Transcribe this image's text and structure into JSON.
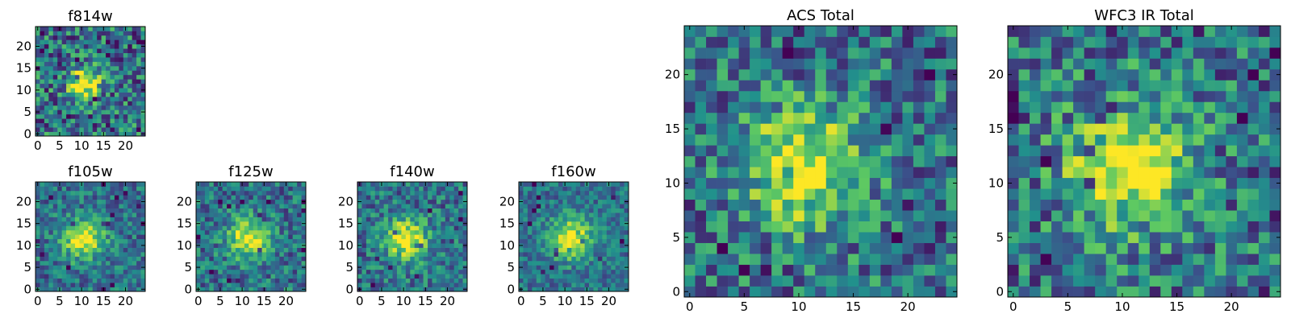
{
  "colormap": [
    "#440154",
    "#3b528b",
    "#21918c",
    "#5ec962",
    "#fde725"
  ],
  "chart_data": [
    {
      "type": "heatmap",
      "title": "f814w",
      "grid_size": 25,
      "xticks": [
        0,
        5,
        10,
        15,
        20
      ],
      "yticks": [
        0,
        5,
        10,
        15,
        20
      ],
      "xlim": [
        0,
        25
      ],
      "ylim": [
        0,
        25
      ],
      "peak": [
        11,
        12
      ],
      "peak_width": 2.6,
      "noise": 0.34,
      "seed": 11
    },
    {
      "type": "heatmap",
      "title": "f105w",
      "grid_size": 25,
      "xticks": [
        0,
        5,
        10,
        15,
        20
      ],
      "yticks": [
        0,
        5,
        10,
        15,
        20
      ],
      "xlim": [
        0,
        25
      ],
      "ylim": [
        0,
        25
      ],
      "peak": [
        11,
        12
      ],
      "peak_width": 3.2,
      "noise": 0.22,
      "seed": 23
    },
    {
      "type": "heatmap",
      "title": "f125w",
      "grid_size": 25,
      "xticks": [
        0,
        5,
        10,
        15,
        20
      ],
      "yticks": [
        0,
        5,
        10,
        15,
        20
      ],
      "xlim": [
        0,
        25
      ],
      "ylim": [
        0,
        25
      ],
      "peak": [
        12,
        12
      ],
      "peak_width": 3.2,
      "noise": 0.24,
      "seed": 37
    },
    {
      "type": "heatmap",
      "title": "f140w",
      "grid_size": 25,
      "xticks": [
        0,
        5,
        10,
        15,
        20
      ],
      "yticks": [
        0,
        5,
        10,
        15,
        20
      ],
      "xlim": [
        0,
        25
      ],
      "ylim": [
        0,
        25
      ],
      "peak": [
        11,
        12
      ],
      "peak_width": 3.4,
      "noise": 0.24,
      "seed": 41
    },
    {
      "type": "heatmap",
      "title": "f160w",
      "grid_size": 25,
      "xticks": [
        0,
        5,
        10,
        15,
        20
      ],
      "yticks": [
        0,
        5,
        10,
        15,
        20
      ],
      "xlim": [
        0,
        25
      ],
      "ylim": [
        0,
        25
      ],
      "peak": [
        12,
        12
      ],
      "peak_width": 3.4,
      "noise": 0.18,
      "seed": 53
    },
    {
      "type": "heatmap",
      "title": "ACS Total",
      "grid_size": 25,
      "xticks": [
        0,
        5,
        10,
        15,
        20
      ],
      "yticks": [
        0,
        5,
        10,
        15,
        20
      ],
      "xlim": [
        0,
        25
      ],
      "ylim": [
        0,
        25
      ],
      "peak": [
        11,
        12
      ],
      "peak_width": 3.8,
      "noise": 0.3,
      "seed": 67
    },
    {
      "type": "heatmap",
      "title": "WFC3 IR Total",
      "grid_size": 25,
      "xticks": [
        0,
        5,
        10,
        15,
        20
      ],
      "yticks": [
        0,
        5,
        10,
        15,
        20
      ],
      "xlim": [
        0,
        25
      ],
      "ylim": [
        0,
        25
      ],
      "peak": [
        11,
        12
      ],
      "peak_width": 4.0,
      "noise": 0.32,
      "seed": 79
    }
  ]
}
